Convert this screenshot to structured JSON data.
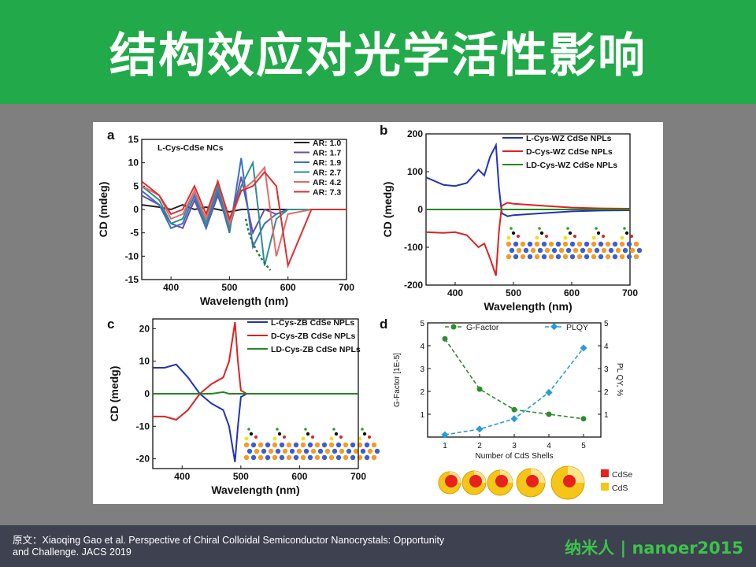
{
  "title": "结构效应对光学活性影响",
  "figure": {
    "panels": [
      "a",
      "b",
      "c",
      "d"
    ],
    "panel_a": {
      "annotation": "L-Cys-CdSe NCs",
      "legend": [
        "AR: 1.0",
        "AR: 1.7",
        "AR: 1.9",
        "AR: 2.7",
        "AR: 4.2",
        "AR: 7.3"
      ],
      "colors": [
        "#222222",
        "#6a4fa0",
        "#3c6fc4",
        "#2f8f8f",
        "#e66a6a",
        "#d93030"
      ]
    },
    "panel_b": {
      "legend": [
        "L-Cys-WZ CdSe NPLs",
        "D-Cys-WZ CdSe NPLs",
        "LD-Cys-WZ CdSe NPLs"
      ],
      "colors": [
        "#2233bb",
        "#dd2222",
        "#228822"
      ]
    },
    "panel_c": {
      "legend": [
        "L-Cys-ZB CdSe NPLs",
        "D-Cys-ZB CdSe NPLs",
        "LD-Cys-ZB CdSe NPLs"
      ],
      "colors": [
        "#2233bb",
        "#dd2222",
        "#228822"
      ]
    },
    "panel_d": {
      "legend": [
        "G-Factor",
        "PLQY"
      ],
      "shell_legend": [
        "CdSe",
        "CdS"
      ],
      "shell_colors": [
        "#e8211d",
        "#f5c518"
      ]
    }
  },
  "chart_data": [
    {
      "type": "line",
      "panel": "a",
      "xlabel": "Wavelength (nm)",
      "ylabel": "CD (mdeg)",
      "xlim": [
        350,
        700
      ],
      "ylim": [
        -15,
        15
      ],
      "xticks": [
        400,
        500,
        600,
        700
      ],
      "yticks": [
        -15,
        -10,
        -5,
        0,
        5,
        10,
        15
      ],
      "x": [
        350,
        380,
        400,
        420,
        440,
        460,
        480,
        500,
        520,
        540,
        560,
        580,
        600,
        640,
        700
      ],
      "series": [
        {
          "name": "AR: 1.0",
          "values": [
            1,
            0.5,
            0,
            1,
            0,
            0.5,
            0,
            -0.5,
            0,
            0,
            0,
            0,
            0,
            0,
            0
          ]
        },
        {
          "name": "AR: 1.7",
          "values": [
            3,
            1,
            -3,
            -4,
            2,
            -4,
            3,
            -4,
            7,
            -5,
            0,
            -1,
            0,
            0,
            0
          ]
        },
        {
          "name": "AR: 1.9",
          "values": [
            4,
            1,
            -4,
            -3,
            3,
            -4,
            4,
            -5,
            11,
            -8,
            -3,
            -1,
            0,
            0,
            0
          ]
        },
        {
          "name": "AR: 2.7",
          "values": [
            5,
            2,
            -3,
            -2,
            4,
            -3,
            5,
            -4,
            5,
            10,
            -12,
            -2,
            0,
            0,
            0
          ]
        },
        {
          "name": "AR: 4.2",
          "values": [
            5,
            3,
            -2,
            -1,
            4,
            -2,
            6,
            -3,
            4,
            6,
            9,
            -10,
            -1,
            0,
            0
          ]
        },
        {
          "name": "AR: 7.3",
          "values": [
            6,
            3,
            -1,
            0,
            5,
            -1,
            6,
            -2,
            4,
            5,
            8,
            5,
            -12,
            0,
            0
          ]
        }
      ]
    },
    {
      "type": "line",
      "panel": "b",
      "xlabel": "Wavelength (nm)",
      "ylabel": "CD (medg)",
      "xlim": [
        350,
        700
      ],
      "ylim": [
        -200,
        200
      ],
      "xticks": [
        400,
        500,
        600,
        700
      ],
      "yticks": [
        -200,
        -100,
        0,
        100,
        200
      ],
      "x": [
        350,
        380,
        400,
        420,
        440,
        450,
        460,
        470,
        475,
        480,
        490,
        500,
        550,
        600,
        650,
        700
      ],
      "series": [
        {
          "name": "L-Cys-WZ CdSe NPLs",
          "values": [
            85,
            65,
            62,
            70,
            105,
            90,
            140,
            170,
            60,
            -10,
            -18,
            -15,
            -10,
            -5,
            -3,
            -2
          ]
        },
        {
          "name": "D-Cys-WZ CdSe NPLs",
          "values": [
            -60,
            -62,
            -60,
            -68,
            -100,
            -90,
            -130,
            -175,
            -60,
            10,
            18,
            15,
            10,
            5,
            3,
            2
          ]
        },
        {
          "name": "LD-Cys-WZ CdSe NPLs",
          "values": [
            0,
            0,
            0,
            0,
            0,
            0,
            0,
            0,
            0,
            0,
            0,
            0,
            0,
            0,
            0,
            0
          ]
        }
      ]
    },
    {
      "type": "line",
      "panel": "c",
      "xlabel": "Wavelength (nm)",
      "ylabel": "CD (medg)",
      "xlim": [
        350,
        700
      ],
      "ylim": [
        -23,
        23
      ],
      "xticks": [
        400,
        500,
        600,
        700
      ],
      "yticks": [
        -20,
        -10,
        0,
        10,
        20
      ],
      "x": [
        350,
        370,
        390,
        410,
        430,
        450,
        470,
        480,
        490,
        495,
        500,
        510,
        550,
        600,
        700
      ],
      "series": [
        {
          "name": "L-Cys-ZB CdSe NPLs",
          "values": [
            8,
            8,
            9,
            5,
            0,
            -3,
            -5,
            -10,
            -21,
            -10,
            -1,
            0,
            0,
            0,
            0
          ]
        },
        {
          "name": "D-Cys-ZB CdSe NPLs",
          "values": [
            -7,
            -7,
            -8,
            -5,
            0,
            3,
            5,
            10,
            22,
            10,
            1,
            0,
            0,
            0,
            0
          ]
        },
        {
          "name": "LD-Cys-ZB CdSe NPLs",
          "values": [
            0,
            0,
            0,
            0,
            0,
            0,
            0.5,
            0,
            0,
            0,
            0,
            0,
            0,
            0,
            0
          ]
        }
      ]
    },
    {
      "type": "line",
      "panel": "d",
      "xlabel": "Number of CdS Shells",
      "ylabel": "G-Factor [1E-5]",
      "y2label": "PL QY, %",
      "xlim": [
        0.5,
        5.5
      ],
      "ylim": [
        0,
        5
      ],
      "xticks": [
        1,
        2,
        3,
        4,
        5
      ],
      "yticks": [
        1,
        2,
        3,
        4,
        5
      ],
      "categories": [
        1,
        2,
        3,
        4,
        5
      ],
      "series": [
        {
          "name": "G-Factor",
          "values": [
            4.3,
            2.1,
            1.2,
            1.0,
            0.8
          ]
        },
        {
          "name": "PLQY",
          "values": [
            0.1,
            0.35,
            0.8,
            1.95,
            3.9
          ]
        }
      ]
    }
  ],
  "footer": {
    "citation_line1": "原文：Xiaoqing Gao et al. Perspective of Chiral Colloidal Semiconductor Nanocrystals: Opportunity",
    "citation_line2": "and Challenge. JACS 2019",
    "brand": "纳米人 | nanoer2015"
  }
}
